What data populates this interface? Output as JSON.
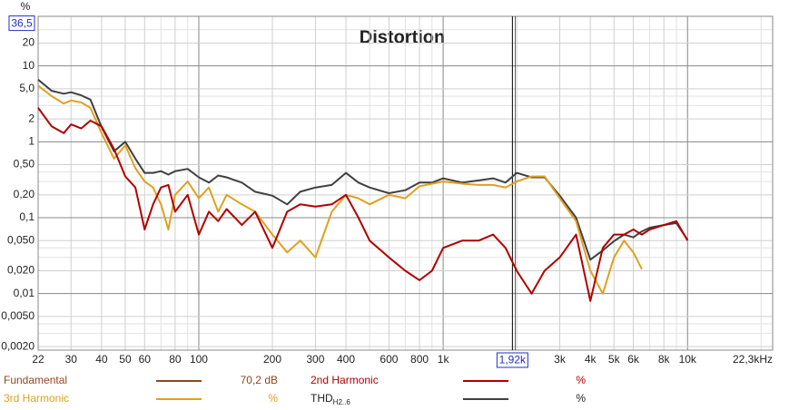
{
  "chart_data": {
    "type": "line",
    "title": "Distortion",
    "y_unit": "%",
    "log_x": true,
    "log_y": true,
    "grid": true,
    "xlim": [
      22,
      22300
    ],
    "ylim": [
      0.0018,
      45
    ],
    "xticks": [
      22,
      30,
      40,
      50,
      60,
      80,
      100,
      200,
      300,
      400,
      600,
      800,
      {
        "value": 1000,
        "label": "1k"
      },
      {
        "value": 2000,
        "label": "2k"
      },
      {
        "value": 3000,
        "label": "3k"
      },
      {
        "value": 4000,
        "label": "4k"
      },
      {
        "value": 5000,
        "label": "5k"
      },
      {
        "value": 6000,
        "label": "6k"
      },
      {
        "value": 8000,
        "label": "8k"
      },
      {
        "value": 10000,
        "label": "10k"
      },
      {
        "value": 22300,
        "label": "22,3kHz"
      }
    ],
    "xminorticks": [
      70,
      90,
      500,
      700,
      900,
      7000,
      9000,
      20000
    ],
    "yticks": [
      {
        "value": 0.002,
        "label": "0,0020"
      },
      {
        "value": 0.005,
        "label": "0,0050"
      },
      {
        "value": 0.01,
        "label": "0,01"
      },
      {
        "value": 0.02,
        "label": "0,020"
      },
      {
        "value": 0.05,
        "label": "0,050"
      },
      {
        "value": 0.1,
        "label": "0,1"
      },
      {
        "value": 0.2,
        "label": "0,20"
      },
      {
        "value": 0.5,
        "label": "0,50"
      },
      1,
      2,
      {
        "value": 5,
        "label": "5,0"
      },
      10,
      20
    ],
    "yminorticks": [
      0.003,
      0.004,
      0.03,
      0.04,
      0.3,
      0.4,
      3,
      4,
      30
    ],
    "cursor": {
      "x": {
        "value": 1920,
        "label": "1,92k"
      },
      "y": {
        "value": 36.5,
        "label": "36,5"
      }
    },
    "x": [
      22,
      25,
      28,
      30,
      33,
      36,
      40,
      45,
      50,
      55,
      60,
      65,
      70,
      75,
      80,
      90,
      100,
      110,
      120,
      130,
      150,
      170,
      200,
      230,
      260,
      300,
      350,
      400,
      450,
      500,
      600,
      700,
      800,
      900,
      1000,
      1200,
      1400,
      1600,
      1800,
      2000,
      2300,
      2600,
      3000,
      3500,
      4000,
      4500,
      5000,
      5500,
      6000,
      6500,
      7000,
      8000,
      9000,
      10000
    ],
    "series": [
      {
        "name": "Fundamental",
        "color": "#8b4a1c",
        "readout": "70,2 dB"
      },
      {
        "name": "2nd Harmonic",
        "color": "#b00000",
        "readout": "%",
        "values": [
          2.8,
          1.6,
          1.3,
          1.7,
          1.5,
          1.9,
          1.6,
          0.8,
          0.35,
          0.25,
          0.07,
          0.15,
          0.25,
          0.27,
          0.12,
          0.2,
          0.06,
          0.12,
          0.09,
          0.13,
          0.08,
          0.12,
          0.04,
          0.12,
          0.15,
          0.14,
          0.15,
          0.2,
          0.1,
          0.05,
          0.03,
          0.02,
          0.015,
          0.02,
          0.04,
          0.05,
          0.05,
          0.06,
          0.04,
          0.02,
          0.01,
          0.02,
          0.03,
          0.06,
          0.008,
          0.04,
          0.06,
          0.06,
          0.07,
          0.06,
          0.07,
          0.08,
          0.09,
          0.05
        ]
      },
      {
        "name": "3rd Harmonic",
        "color": "#e0a020",
        "readout": "%",
        "values": [
          5.5,
          4.0,
          3.2,
          3.5,
          3.3,
          2.8,
          1.3,
          0.6,
          0.9,
          0.45,
          0.3,
          0.25,
          0.15,
          0.07,
          0.2,
          0.3,
          0.18,
          0.25,
          0.12,
          0.2,
          0.15,
          0.12,
          0.06,
          0.035,
          0.05,
          0.03,
          0.12,
          0.2,
          0.18,
          0.15,
          0.2,
          0.18,
          0.26,
          0.28,
          0.3,
          0.28,
          0.27,
          0.27,
          0.25,
          0.3,
          0.35,
          0.35,
          0.18,
          0.09,
          0.02,
          0.01,
          0.03,
          0.05,
          0.035,
          0.021,
          null,
          null,
          null,
          null
        ]
      },
      {
        "name": "THD",
        "name_sub": "H2..6",
        "color": "#404040",
        "readout": "%",
        "values": [
          6.6,
          4.7,
          4.3,
          4.5,
          4.1,
          3.6,
          1.56,
          0.75,
          1.0,
          0.6,
          0.39,
          0.39,
          0.41,
          0.37,
          0.41,
          0.44,
          0.34,
          0.29,
          0.36,
          0.34,
          0.29,
          0.22,
          0.195,
          0.15,
          0.22,
          0.25,
          0.27,
          0.39,
          0.29,
          0.25,
          0.21,
          0.23,
          0.29,
          0.29,
          0.33,
          0.29,
          0.31,
          0.33,
          0.29,
          0.39,
          0.34,
          0.34,
          0.195,
          0.1,
          0.028,
          0.037,
          0.049,
          0.06,
          0.055,
          0.066,
          0.074,
          0.08,
          0.085,
          0.051
        ]
      }
    ]
  }
}
